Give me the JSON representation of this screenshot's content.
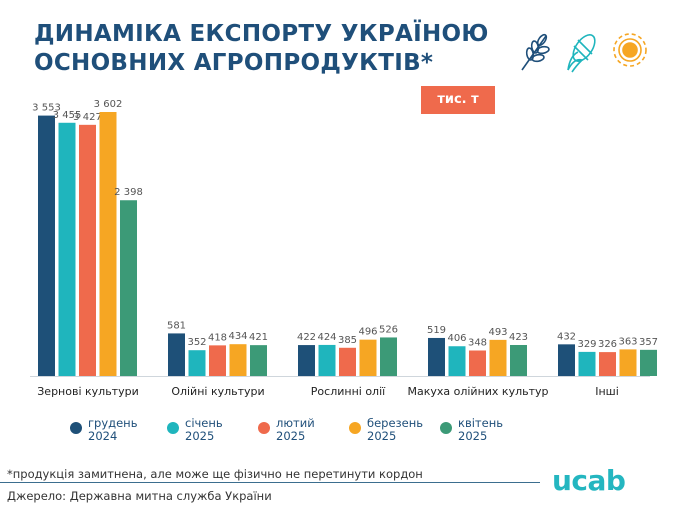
{
  "header": {
    "title_line1": "ДИНАМІКА ЕКСПОРТУ УКРАЇНОЮ",
    "title_line2": "ОСНОВНИХ АГРОПРОДУКТІВ*",
    "unit": "тис. т"
  },
  "icons": [
    "wheat-icon",
    "corn-icon",
    "sunflower-icon"
  ],
  "chart_data": {
    "type": "bar",
    "categories": [
      "Зернові культури",
      "Олійні культури",
      "Рослинні олії",
      "Макуха олійних культур",
      "Інші"
    ],
    "series": [
      {
        "name": "грудень\n2024",
        "color": "#1e5078",
        "values": [
          3553,
          581,
          422,
          519,
          432
        ],
        "labels": [
          "3 553",
          "581",
          "422",
          "519",
          "432"
        ]
      },
      {
        "name": "січень\n2025",
        "color": "#1fb5bd",
        "values": [
          3455,
          352,
          424,
          406,
          329
        ],
        "labels": [
          "3 455",
          "352",
          "424",
          "406",
          "329"
        ]
      },
      {
        "name": "лютий\n2025",
        "color": "#ef6a4c",
        "values": [
          3427,
          418,
          385,
          348,
          326
        ],
        "labels": [
          "3 427",
          "418",
          "385",
          "348",
          "326"
        ]
      },
      {
        "name": "березень\n2025",
        "color": "#f6a623",
        "values": [
          3602,
          434,
          496,
          493,
          363
        ],
        "labels": [
          "3 602",
          "434",
          "496",
          "493",
          "363"
        ]
      },
      {
        "name": "квітень\n2025",
        "color": "#3c9a77",
        "values": [
          2398,
          421,
          526,
          423,
          357
        ],
        "labels": [
          "2 398",
          "421",
          "526",
          "423",
          "357"
        ]
      }
    ],
    "ylim": [
      0,
      3700
    ],
    "grid": false,
    "legend": "bottom"
  },
  "footer": {
    "footnote": "*продукція замитнена, але може ще фізично не перетинути кордон",
    "source": "Джерело: Державна митна служба України",
    "logo": "ucab"
  }
}
